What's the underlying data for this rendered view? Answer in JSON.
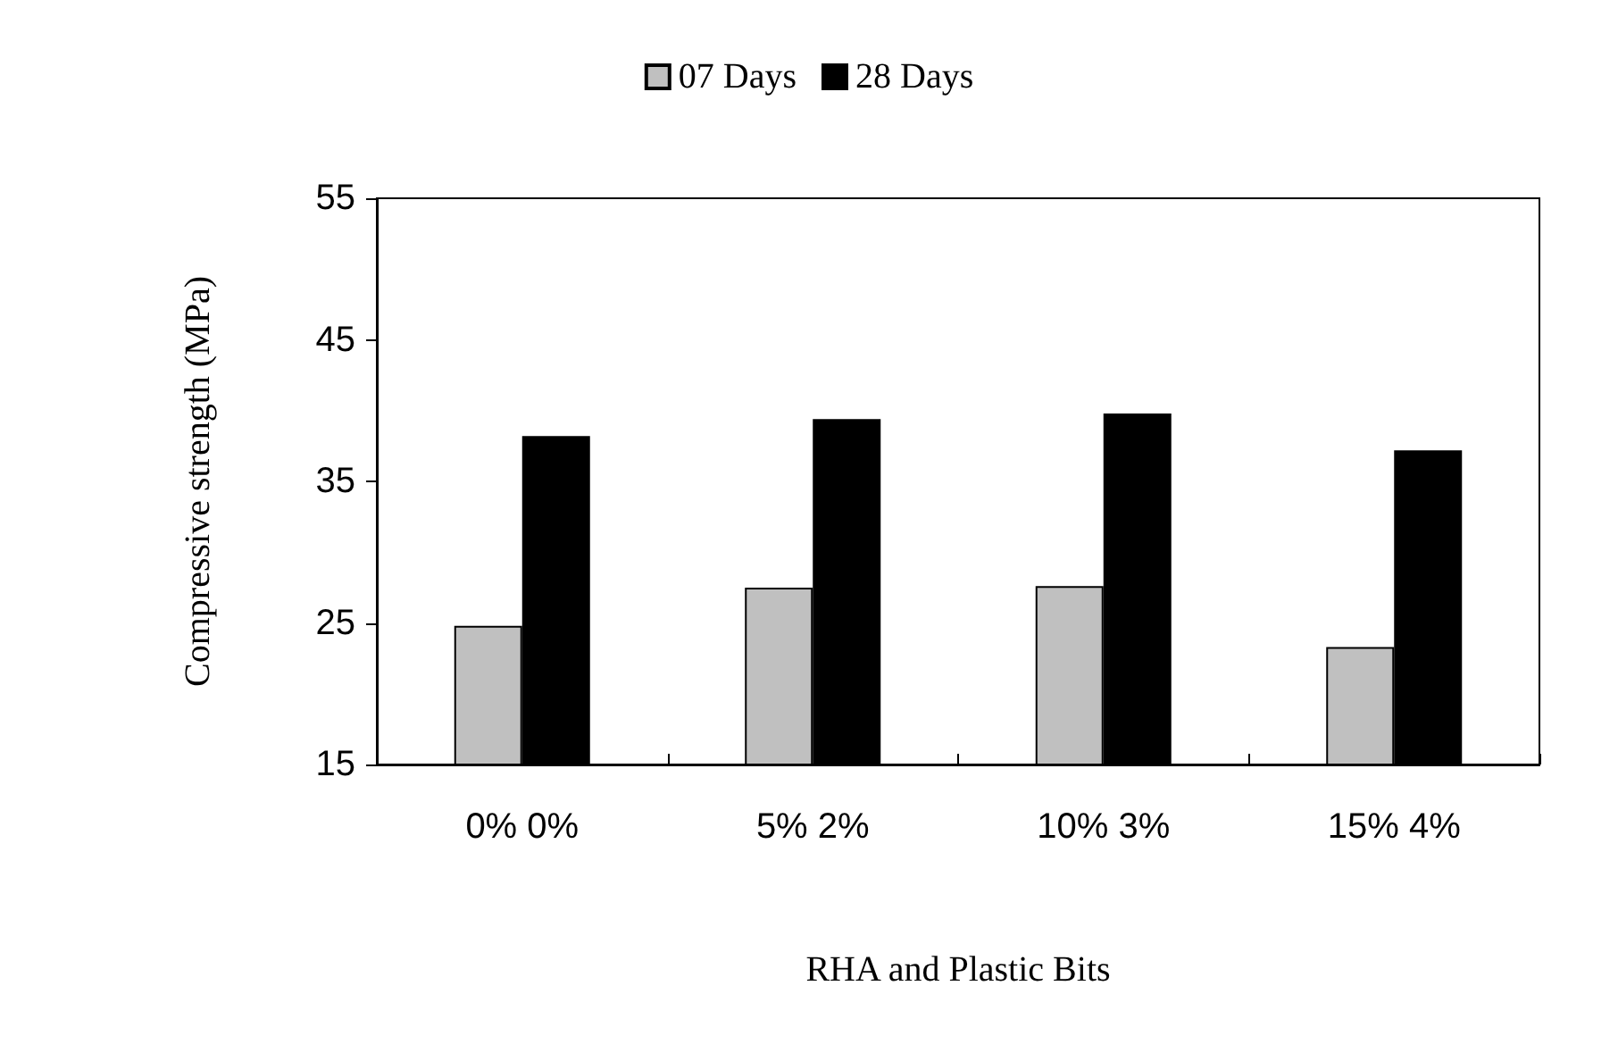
{
  "chart_data": {
    "type": "bar",
    "xlabel": "RHA and Plastic Bits",
    "ylabel": "Compressive strength (MPa)",
    "categories": [
      "0% 0%",
      "5% 2%",
      "10% 3%",
      "15% 4%"
    ],
    "series": [
      {
        "name": "07 Days",
        "color": "#c0c0c0",
        "values": [
          24.8,
          27.5,
          27.6,
          23.3
        ]
      },
      {
        "name": "28 Days",
        "color": "#000000",
        "values": [
          38.2,
          39.4,
          39.8,
          37.2
        ]
      }
    ],
    "ylim": [
      15,
      55
    ],
    "yticks": [
      15,
      25,
      35,
      45,
      55
    ],
    "grid": false,
    "legend": "top"
  }
}
